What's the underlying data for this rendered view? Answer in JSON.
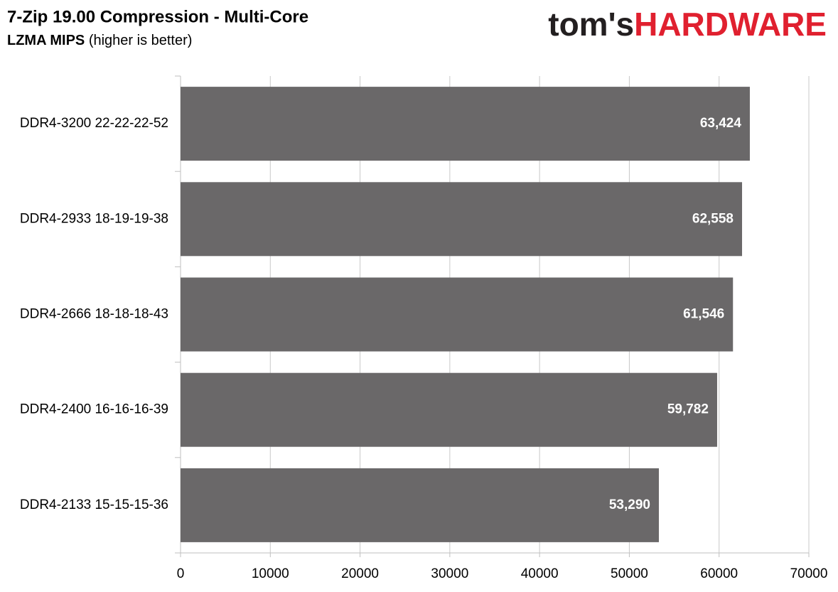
{
  "chart_data": {
    "type": "hbar",
    "title": "7-Zip 19.00 Compression - Multi-Core",
    "subtitle": {
      "bold": "LZMA MIPS",
      "rest": "(higher is better)"
    },
    "logo": {
      "left": "tom's",
      "right": "HARDWARE"
    },
    "categories": [
      "DDR4-3200 22-22-22-52",
      "DDR4-2933 18-19-19-38",
      "DDR4-2666 18-18-18-43",
      "DDR4-2400 16-16-16-39",
      "DDR4-2133 15-15-15-36"
    ],
    "values": [
      63424,
      62558,
      61546,
      59782,
      53290
    ],
    "value_labels": [
      "63,424",
      "62,558",
      "61,546",
      "59,782",
      "53,290"
    ],
    "color": "#6a6869",
    "xlim": [
      0,
      70000
    ],
    "xticks": [
      0,
      10000,
      20000,
      30000,
      40000,
      50000,
      60000,
      70000
    ],
    "grid": true
  }
}
